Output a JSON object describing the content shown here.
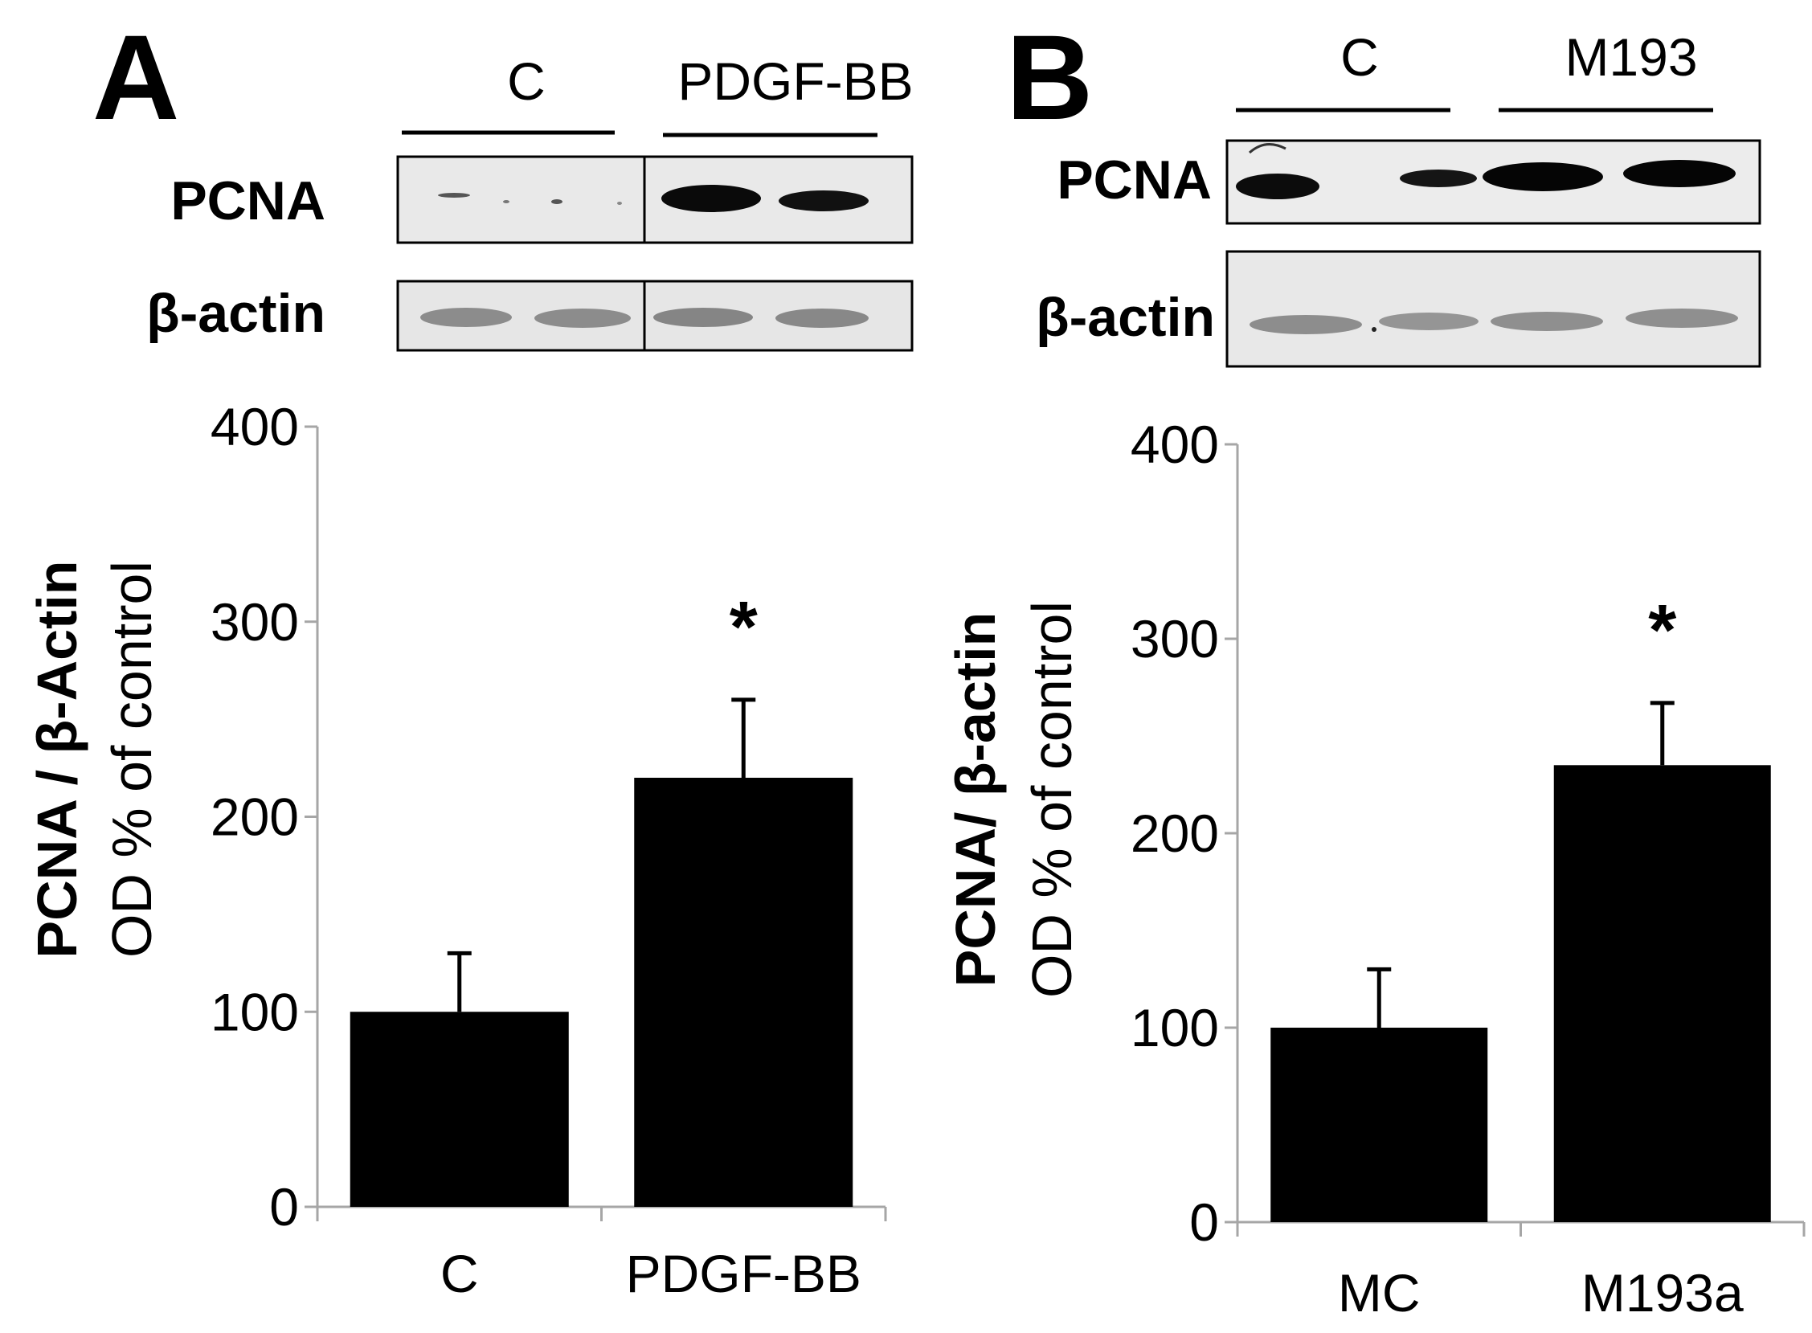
{
  "panels": [
    {
      "letter": "A",
      "blot": {
        "groups": [
          "C",
          "PDGF-BB"
        ],
        "rows": [
          "PCNA",
          "β-actin"
        ]
      }
    },
    {
      "letter": "B",
      "blot": {
        "groups": [
          "C",
          "M193"
        ],
        "rows": [
          "PCNA",
          "β-actin"
        ]
      }
    }
  ],
  "chart_data": [
    {
      "type": "bar",
      "categories": [
        "C",
        "PDGF-BB"
      ],
      "values": [
        100,
        220
      ],
      "errors": [
        30,
        40
      ],
      "significance": [
        "",
        "*"
      ],
      "ylabel_main": "PCNA / β-Actin",
      "ylabel_sub": "OD % of control",
      "ylim": [
        0,
        400
      ],
      "yticks": [
        0,
        100,
        200,
        300,
        400
      ],
      "bar_color": "#000000",
      "grid": false
    },
    {
      "type": "bar",
      "categories": [
        "MC",
        "M193a"
      ],
      "values": [
        100,
        235
      ],
      "errors": [
        30,
        32
      ],
      "significance": [
        "",
        "*"
      ],
      "ylabel_main": "PCNA/ β-actin",
      "ylabel_sub": "OD % of control",
      "ylim": [
        0,
        400
      ],
      "yticks": [
        0,
        100,
        200,
        300,
        400
      ],
      "bar_color": "#000000",
      "grid": false
    }
  ]
}
